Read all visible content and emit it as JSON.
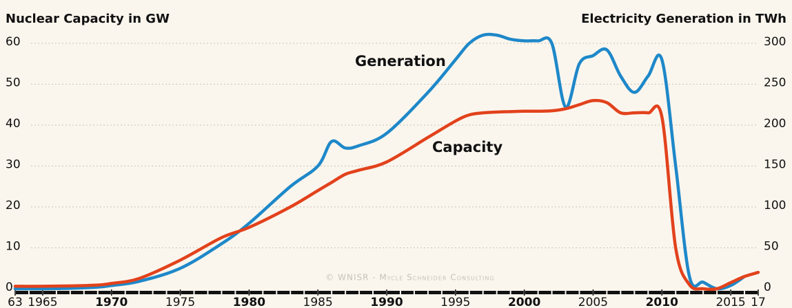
{
  "chart_data": {
    "type": "line",
    "y_axis_title": "Nuclear Capacity in GW",
    "y2_axis_title": "Electricity Generation in TWh",
    "x": [
      1963,
      1965,
      1967,
      1969,
      1970,
      1972,
      1975,
      1978,
      1980,
      1983,
      1985,
      1986,
      1987,
      1988,
      1990,
      1993,
      1995,
      1996,
      1997,
      1998,
      1999,
      2000,
      2001,
      2002,
      2003,
      2004,
      2005,
      2006,
      2007,
      2008,
      2009,
      2010,
      2011,
      2012,
      2013,
      2014,
      2015,
      2016,
      2017
    ],
    "series": [
      {
        "name": "Generation",
        "color": "#1e88c9",
        "axis": "y2",
        "values": [
          0,
          0,
          0.5,
          2,
          4,
          9,
          25,
          55,
          80,
          125,
          150,
          180,
          172,
          175,
          190,
          240,
          280,
          300,
          310,
          310,
          305,
          303,
          303,
          300,
          222,
          275,
          285,
          292,
          260,
          240,
          260,
          280,
          150,
          15,
          8,
          0,
          4,
          15,
          null
        ]
      },
      {
        "name": "Capacity",
        "color": "#e2421c",
        "axis": "y",
        "values": [
          0.6,
          0.6,
          0.7,
          0.9,
          1.3,
          2.5,
          7,
          12.5,
          15,
          20,
          24,
          26,
          28,
          29,
          31,
          37,
          41,
          42.5,
          43,
          43.2,
          43.3,
          43.4,
          43.4,
          43.5,
          44,
          45,
          46,
          45.5,
          43,
          43,
          43,
          42,
          10,
          1,
          0,
          0,
          1.5,
          3,
          4
        ]
      }
    ],
    "xlim": [
      1963,
      2017
    ],
    "xticks": [
      {
        "value": 1963,
        "label": "63"
      },
      1965,
      1970,
      1975,
      1980,
      1985,
      1990,
      1995,
      2000,
      2005,
      2010,
      2015,
      {
        "value": 2017,
        "label": "17"
      }
    ],
    "ylim": [
      0,
      60
    ],
    "yticks": [
      0,
      10,
      20,
      30,
      40,
      50,
      60
    ],
    "y2lim": [
      0,
      300
    ],
    "y2ticks": [
      0,
      50,
      100,
      150,
      200,
      250,
      300
    ],
    "grid": true,
    "annotations": [
      "Generation",
      "Capacity",
      "© WNISR - Mycle Schneider Consulting"
    ]
  }
}
